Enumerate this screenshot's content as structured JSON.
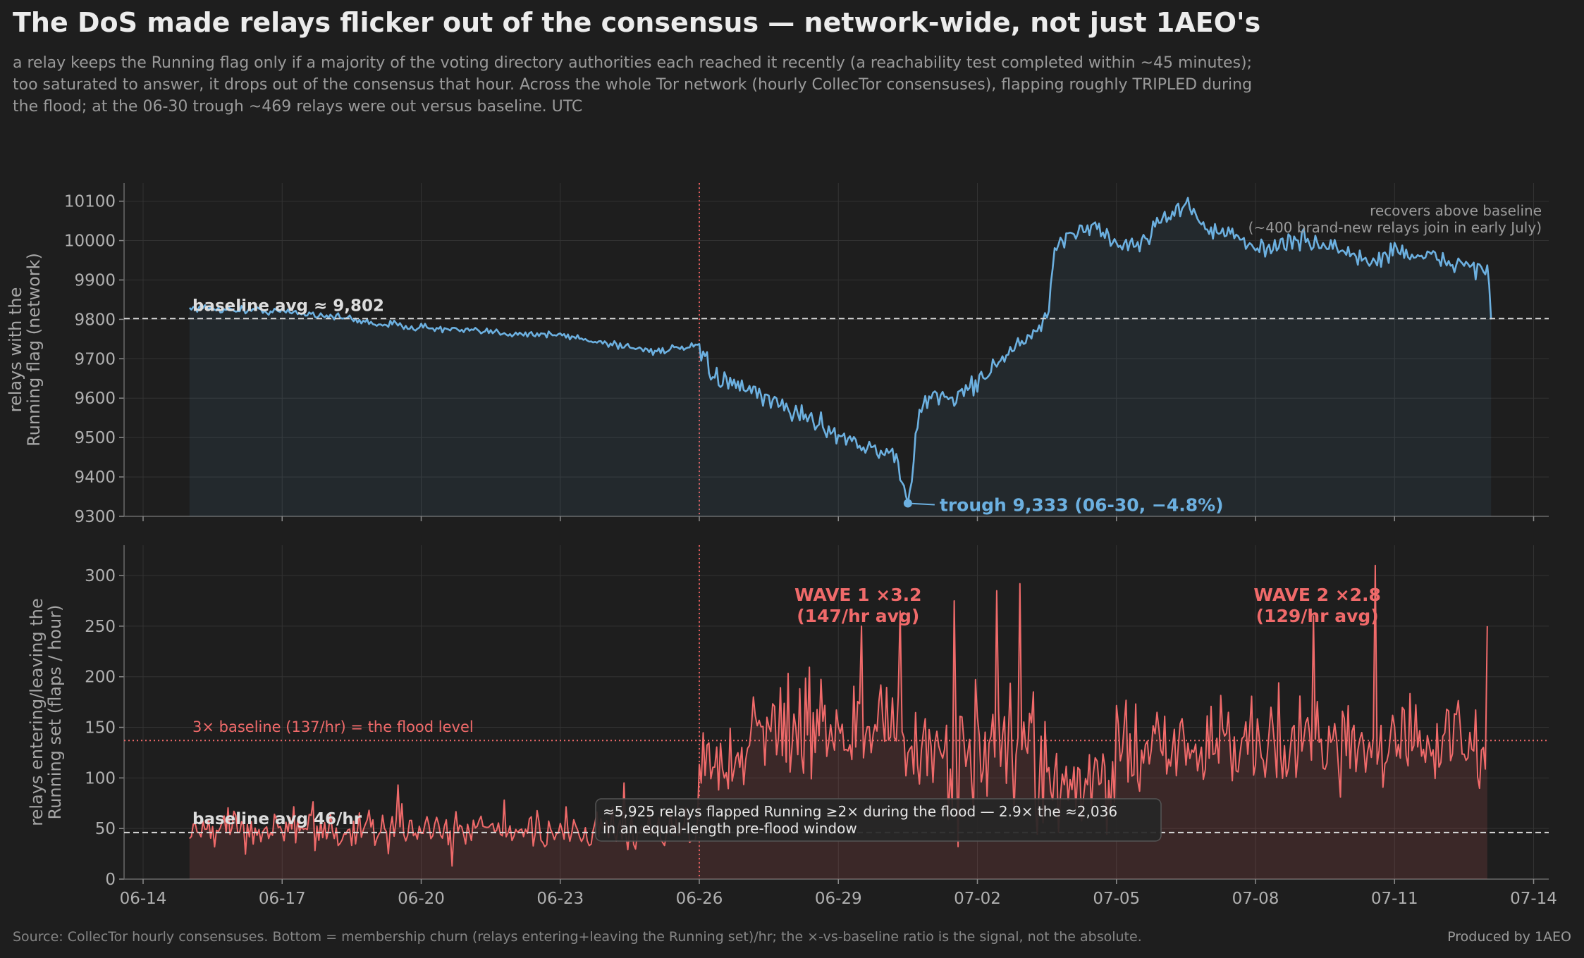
{
  "title": "The DoS made relays flicker out of the consensus — network-wide, not just 1AEO's",
  "subtitle_lines": [
    "a relay keeps the Running flag only if a majority of the voting directory authorities each reached it recently (a reachability test completed within ~45 minutes);",
    "too saturated to answer, it drops out of the consensus that hour. Across the whole Tor network (hourly CollecTor consensuses), flapping roughly TRIPLED during",
    "the flood; at the 06-30 trough ~469 relays were out versus baseline. UTC"
  ],
  "footer_source": "Source: CollecTor hourly consensuses. Bottom = membership churn (relays entering+leaving the Running set)/hr; the ×-vs-baseline ratio is the signal, not the absolute.",
  "footer_credit": "Produced by 1AEO",
  "colors": {
    "background": "#1e1e1e",
    "running_line": "#6cb0e0",
    "flaps_line": "#f06a6a",
    "event_line": "#e05a5a",
    "baseline": "#d8d8d8",
    "grid": "#333333"
  },
  "chart_data": [
    {
      "type": "area",
      "ylabel_lines": [
        "relays with the",
        "Running flag (network)"
      ],
      "ylim": [
        9300,
        10150
      ],
      "yticks": [
        9300,
        9400,
        9500,
        9600,
        9700,
        9800,
        9900,
        10000,
        10100
      ],
      "x_ticks": [
        "06-14",
        "06-17",
        "06-20",
        "06-23",
        "06-26",
        "06-29",
        "07-02",
        "07-05",
        "07-08",
        "07-11",
        "07-14"
      ],
      "x_unit": "date (UTC)",
      "x_start": "06-15",
      "x_end": "07-13",
      "grid": true,
      "baseline": {
        "value": 9802,
        "label": "baseline avg ≈ 9,802"
      },
      "event_line": {
        "x": "06-26"
      },
      "keypoints": [
        [
          "06-15",
          9830
        ],
        [
          "06-16",
          9825
        ],
        [
          "06-17",
          9820
        ],
        [
          "06-18",
          9810
        ],
        [
          "06-19",
          9790
        ],
        [
          "06-20",
          9780
        ],
        [
          "06-21",
          9770
        ],
        [
          "06-22",
          9765
        ],
        [
          "06-23",
          9760
        ],
        [
          "06-24",
          9740
        ],
        [
          "06-25",
          9720
        ],
        [
          "06-26",
          9730
        ],
        [
          "06-26 06h",
          9660
        ],
        [
          "06-27",
          9620
        ],
        [
          "06-28",
          9570
        ],
        [
          "06-28 12h",
          9540
        ],
        [
          "06-29",
          9510
        ],
        [
          "06-29 12h",
          9480
        ],
        [
          "06-30",
          9460
        ],
        [
          "06-30 06h",
          9450
        ],
        [
          "06-30 12h",
          9333
        ],
        [
          "06-30 18h",
          9560
        ],
        [
          "07-01",
          9610
        ],
        [
          "07-01 12h",
          9600
        ],
        [
          "07-02",
          9640
        ],
        [
          "07-02 12h",
          9700
        ],
        [
          "07-03",
          9740
        ],
        [
          "07-03 12h",
          9800
        ],
        [
          "07-03 16h",
          9960
        ],
        [
          "07-04",
          10020
        ],
        [
          "07-04 12h",
          10040
        ],
        [
          "07-05",
          9990
        ],
        [
          "07-05 12h",
          9990
        ],
        [
          "07-06",
          10060
        ],
        [
          "07-06 12h",
          10090
        ],
        [
          "07-07",
          10030
        ],
        [
          "07-07 12h",
          10010
        ],
        [
          "07-08",
          9980
        ],
        [
          "07-08 12h",
          9990
        ],
        [
          "07-09",
          10000
        ],
        [
          "07-09 12h",
          9990
        ],
        [
          "07-10",
          9970
        ],
        [
          "07-10 12h",
          9940
        ],
        [
          "07-11",
          9980
        ],
        [
          "07-11 12h",
          9960
        ],
        [
          "07-12",
          9950
        ],
        [
          "07-12 12h",
          9940
        ],
        [
          "07-13",
          9930
        ],
        [
          "07-13 02h",
          9800
        ]
      ],
      "trough": {
        "x": "06-30 12h",
        "y": 9333,
        "label": "trough 9,333 (06-30, −4.8%)"
      },
      "annotation_lines": [
        "recovers above baseline",
        "(~400 brand-new relays join in early July)"
      ]
    },
    {
      "type": "area",
      "ylabel_lines": [
        "relays entering/leaving the",
        "Running set  (flaps / hour)"
      ],
      "ylim": [
        0,
        330
      ],
      "yticks": [
        0,
        50,
        100,
        150,
        200,
        250,
        300
      ],
      "x_ticks": [
        "06-14",
        "06-17",
        "06-20",
        "06-23",
        "06-26",
        "06-29",
        "07-02",
        "07-05",
        "07-08",
        "07-11",
        "07-14"
      ],
      "x_unit": "date (UTC)",
      "grid": true,
      "baseline": {
        "value": 46,
        "label": "baseline avg 46/hr"
      },
      "flood_level": {
        "value": 137,
        "label": "3× baseline (137/hr) = the flood level"
      },
      "event_line": {
        "x": "06-26"
      },
      "segments": [
        {
          "from": "06-15",
          "to": "06-26",
          "mean": 48,
          "spread": 14
        },
        {
          "from": "06-26",
          "to": "06-27",
          "mean": 110,
          "spread": 30
        },
        {
          "from": "06-27",
          "to": "06-30 12h",
          "mean": 150,
          "spread": 30
        },
        {
          "from": "06-30 12h",
          "to": "07-03 12h",
          "mean": 125,
          "spread": 45
        },
        {
          "from": "07-03 12h",
          "to": "07-05",
          "mean": 95,
          "spread": 28
        },
        {
          "from": "07-05",
          "to": "07-13",
          "mean": 132,
          "spread": 32
        }
      ],
      "peaks": [
        [
          "06-29 12h",
          250
        ],
        [
          "06-30 08h",
          265
        ],
        [
          "07-01 12h",
          275
        ],
        [
          "07-02 10h",
          285
        ],
        [
          "07-02 22h",
          292
        ],
        [
          "07-10 14h",
          310
        ],
        [
          "07-09 06h",
          260
        ],
        [
          "07-13",
          250
        ],
        [
          "06-24 09h",
          95
        ],
        [
          "06-19 12h",
          93
        ]
      ],
      "waves": [
        {
          "x": "06-29",
          "label_lines": [
            "WAVE 1 ×3.2",
            "(147/hr avg)"
          ]
        },
        {
          "x": "07-09 08h",
          "label_lines": [
            "WAVE 2 ×2.8",
            "(129/hr avg)"
          ]
        }
      ],
      "callout_lines": [
        "≈5,925 relays flapped Running ≥2× during the flood — 2.9× the ≈2,036",
        "in an equal-length pre-flood window"
      ]
    }
  ]
}
